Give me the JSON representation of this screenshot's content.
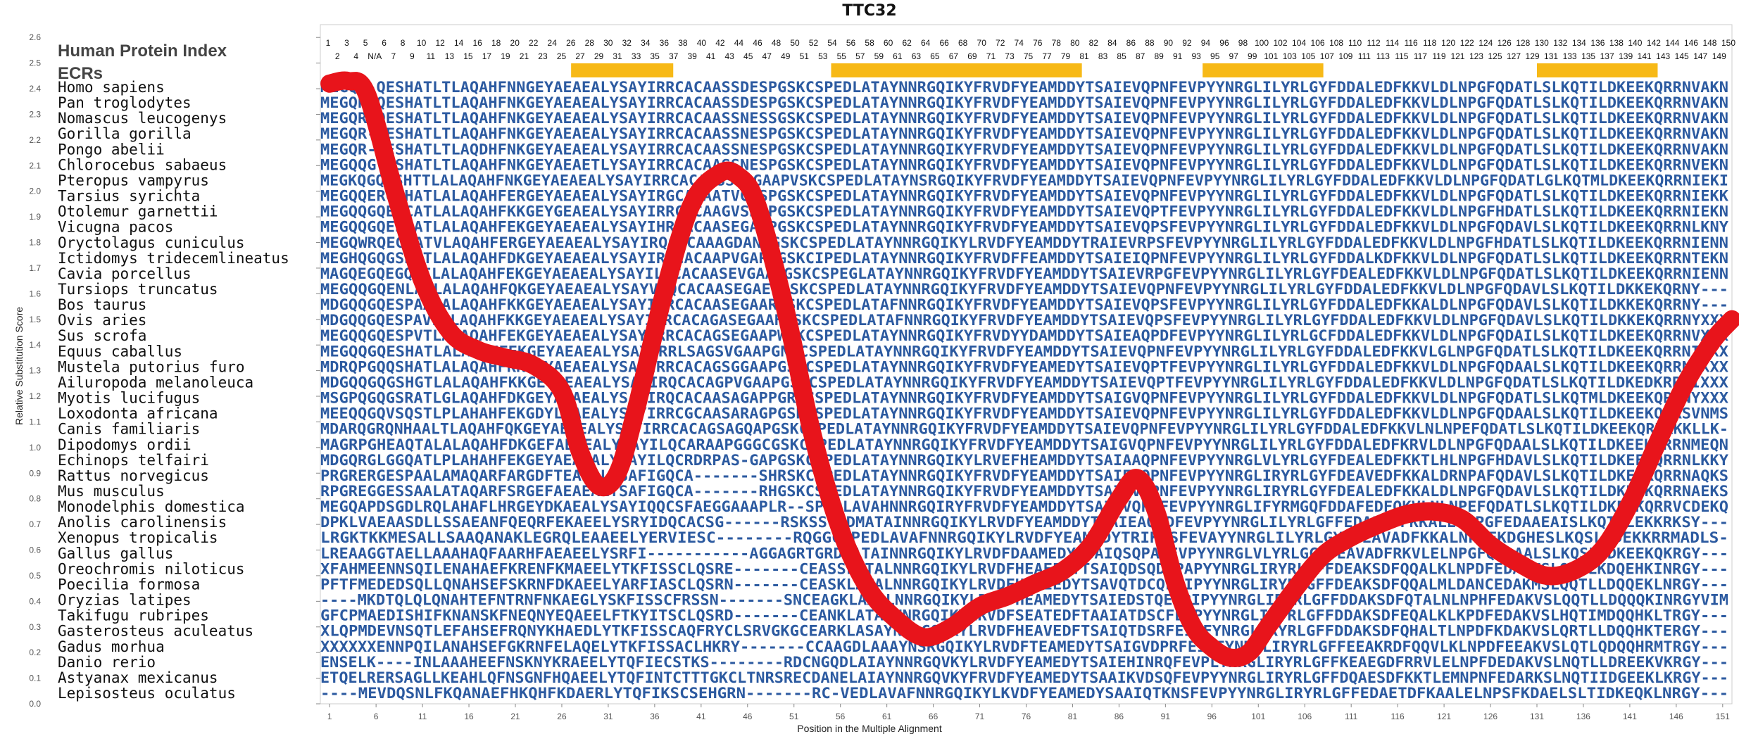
{
  "chart_data": {
    "type": "line",
    "title": "TTC32",
    "xlabel": "Position in the Multiple Alignment",
    "ylabel": "Relative Substitution Score",
    "xlim": [
      0,
      152
    ],
    "ylim": [
      0.0,
      2.65
    ],
    "yticks": [
      "0.0",
      "0.1",
      "0.2",
      "0.3",
      "0.4",
      "0.5",
      "0.6",
      "0.7",
      "0.8",
      "0.9",
      "1.0",
      "1.1",
      "1.2",
      "1.3",
      "1.4",
      "1.5",
      "1.6",
      "1.7",
      "1.8",
      "1.9",
      "2.0",
      "2.1",
      "2.2",
      "2.3",
      "2.4",
      "2.5",
      "2.6"
    ],
    "xticks": [
      "1",
      "6",
      "11",
      "16",
      "21",
      "26",
      "31",
      "36",
      "41",
      "46",
      "51",
      "56",
      "61",
      "66",
      "71",
      "76",
      "81",
      "86",
      "91",
      "96",
      "101",
      "106",
      "111",
      "116",
      "121",
      "126",
      "131",
      "136",
      "141",
      "146",
      "151"
    ],
    "legend_heading": "Human Protein Index",
    "ecr_label": "ECRs",
    "ecr_regions": [
      [
        27,
        38
      ],
      [
        55,
        82
      ],
      [
        95,
        108
      ],
      [
        131,
        144
      ]
    ],
    "index_row1": [
      "1",
      "3",
      "5",
      "6",
      "8",
      "10",
      "12",
      "14",
      "16",
      "18",
      "20",
      "22",
      "24",
      "26",
      "28",
      "30",
      "32",
      "34",
      "36",
      "38",
      "40",
      "42",
      "44",
      "46",
      "48",
      "50",
      "52",
      "54",
      "56",
      "58",
      "60",
      "62",
      "64",
      "66",
      "68",
      "70",
      "72",
      "74",
      "76",
      "78",
      "80",
      "82",
      "84",
      "86",
      "88",
      "90",
      "92",
      "94",
      "96",
      "98",
      "100",
      "102",
      "104",
      "106",
      "108",
      "110",
      "112",
      "114",
      "116",
      "118",
      "120",
      "122",
      "124",
      "126",
      "128",
      "130",
      "132",
      "134",
      "136",
      "138",
      "140",
      "142",
      "144",
      "146",
      "148",
      "150"
    ],
    "index_row2": [
      "2",
      "4",
      "N/A",
      "7",
      "9",
      "11",
      "13",
      "15",
      "17",
      "19",
      "21",
      "23",
      "25",
      "27",
      "29",
      "31",
      "33",
      "35",
      "37",
      "39",
      "41",
      "43",
      "45",
      "47",
      "49",
      "51",
      "53",
      "55",
      "57",
      "59",
      "61",
      "63",
      "65",
      "67",
      "69",
      "71",
      "73",
      "75",
      "77",
      "79",
      "81",
      "83",
      "85",
      "87",
      "89",
      "91",
      "93",
      "95",
      "97",
      "99",
      "101",
      "103",
      "105",
      "107",
      "109",
      "111",
      "113",
      "115",
      "117",
      "119",
      "121",
      "123",
      "125",
      "127",
      "129",
      "131",
      "133",
      "135",
      "137",
      "139",
      "141",
      "143",
      "145",
      "147",
      "149"
    ],
    "series": [
      {
        "color": "#e8141b",
        "x": [
          1,
          3,
          5,
          8,
          11,
          14,
          17,
          20,
          23,
          26,
          28,
          30,
          32,
          34,
          37,
          40,
          43,
          45,
          47,
          50,
          53,
          56,
          59,
          62,
          65,
          68,
          71,
          74,
          77,
          80,
          83,
          86,
          88,
          90,
          92,
          94,
          96,
          98,
          100,
          102,
          105,
          108,
          111,
          114,
          117,
          120,
          123,
          126,
          129,
          132,
          135,
          138,
          141,
          144,
          147,
          150,
          152
        ],
        "y": [
          2.42,
          2.43,
          2.38,
          2.0,
          1.65,
          1.45,
          1.38,
          1.35,
          1.32,
          1.22,
          0.98,
          0.85,
          0.9,
          1.15,
          1.6,
          1.95,
          2.07,
          2.06,
          1.95,
          1.55,
          1.05,
          0.68,
          0.45,
          0.33,
          0.26,
          0.3,
          0.38,
          0.42,
          0.47,
          0.52,
          0.62,
          0.8,
          0.88,
          0.75,
          0.48,
          0.3,
          0.22,
          0.18,
          0.2,
          0.3,
          0.45,
          0.58,
          0.65,
          0.7,
          0.74,
          0.75,
          0.72,
          0.62,
          0.55,
          0.5,
          0.52,
          0.6,
          0.78,
          1.02,
          1.25,
          1.42,
          1.5
        ]
      }
    ],
    "rows": [
      {
        "species": "Homo sapiens",
        "seq": "MEGQR-QESHATLTLAQAHFNNGEYAEAEALYSAYIRRCACAASSDESPGSKCSPEDLATAYNNRGQIKYFRVDFYEAMDDYTSAIEVQPNFEVPYYNRGLILYRLGYFDDALEDFKKVLDLNPGFQDATLSLKQTILDKEEKQRRNVAKN"
      },
      {
        "species": "Pan troglodytes",
        "seq": "MEGQR-QESHATLTLAQAHFNKGEYAEAEALYSAYIRRCACAASSDESPGSKCSPEDLATAYNNRGQIKYFRVDFYEAMDDYTSAIEVQPNFEVPYYNRGLILYRLGYFDDALEDFKKVLDLNPGFQDATLSLKQTILDKEEKQRRNVAKN"
      },
      {
        "species": "Nomascus leucogenys",
        "seq": "MEGQR-QESHATLTLAQAHFNKGEYAEAEALYSAYIRRCACAASSNESSGSKCSPEDLATAYNNRGQIKYFRVDFYEAMDDYTSAIEVQPNFEVPYYNRGLILYRLGYFDDALEDFKKVLDLNPGFQDATLSLKQTILDKEEKQRRNVAKN"
      },
      {
        "species": "Gorilla gorilla",
        "seq": "MEGQR-QESHATLTLAQAHFNKGEYAEAEALYSAYIRRCACAASSNESPGSKCSPEDLATAYNNRGQIKYFRVDFYEAMDDYTSAIEVQPNFEVPYYNRGLILYRLGYFDDALEDFKKVLDLNPGFQDATLSLKQTILDKEEKQRRNVAKN"
      },
      {
        "species": "Pongo abelii",
        "seq": "MEGQR-QESHATLTLAQDHFNKGEYAEAEALYSAYIRRCACAASSNESPGSKCSPEDLATAYNNRGQIKYFRVDFYEAMDDYTSAIEVQPNFEVPYYNRGLILYRLGYFDDALEDFKKVLDLNPGFQDATLSLKQTILDKEEKQRRNVAKN"
      },
      {
        "species": "Chlorocebus sabaeus",
        "seq": "MEGQQG-ESHATLTLAQAHFNKGEYAEAETLYSAYIRRCACAASSNESPGSKCSPEDLATAYNNRGQIKYFRVDFYEAMDDYTSAIEVQPNFEVPYYNRGLILYRLGYFDDALEDFKKVLDLNPGFQDATLSLKQTILDKEEKQRRNVEKN"
      },
      {
        "species": "Pteropus vampyrus",
        "seq": "MEGKQGQESHTTLALAQAHFNKGEYAEAEALYSAYIRRCACAASSPAGAAPVSKCSPEDLATAYNSRGQIKYFRVDFYEAMDDYTSAIEVQPNFEVPYYNRGLILYRLGYFDDALEDFKKVLDLNPGFQDATLGLKQTMLDKEEKQRRNIEKI"
      },
      {
        "species": "Tarsius syrichta",
        "seq": "MEGQQERGSHATLALAQAHFERGEYAEAEALYSAYIRGCAPAATVGASPGSKCSPEDLATAYNNRGQIKYFRVDFYEAMDDYTSAIEVQPNFEVPYYNRGLILYRLGYFDDALEDFKKVLDLNPGFQDATLSLKQTILDKEEKQRRNIEKK"
      },
      {
        "species": "Otolemur garnettii",
        "seq": "MEGQQGQESCATLALAQAHFKKGEYGEAEALYSAYIRRCACAAGVSRAPGSKCSPEDLATAYNNRGQIKYFRVDFYEAMDDYTSAIEVQPTFEVPYYNRGLILYRLGYFDDALEDFKKVLDLNPGFHDATLSLKQTILDKEEKQRRNIEKN"
      },
      {
        "species": "Vicugna pacos",
        "seq": "MEGQQGQESHATLALAQAHFEKGEYAEAEALYSAYIHRCACAASEGAAPGSKCSPEDLATAYNNRGQIKYFRVDFYEAMDDYTSAIEVQPSFEVPYYNRGLILYRLGYFDDALEDFKKVLDLNPGFQDAVLSLKQTILDKEEKQRRNLKNY"
      },
      {
        "species": "Oryctolagus cuniculus",
        "seq": "MEGQWRQEGHATVLAQAHFERGEYAEAEALYSAYIRQCACAAAGDANPGSKCSPEDLATAYNNRGQIKYLRVDFYEAMDDYTRAIEVRPSFEVPYYNRGLILYRLGYFDDALEDFKKVLDLNPGFHDATLSLKQTILDKEEKQRRNIENN"
      },
      {
        "species": "Ictidomys tridecemlineatus",
        "seq": "MEGHQGQGSHDTLALAQAHFDKGEYAEAEALYSAYIRRCACAAPVGARPGSKCIPEDLATAYNNRGQIKYFRVDFFEAMDDYTSAIEIQPNFEVPYYNRGLILYRLGYFDDALKDFKKVLDLNPGFQDATLSLKQTILDKEEKQRRNTEKN"
      },
      {
        "species": "Cavia porcellus",
        "seq": "MAGQEGQEGQAILALAQAHFEKGEYAEAEALYSAYILRCACAASEVGAAPGSKCSPEGLATAYNNRGQIKYFRVDFYEAMDDYTSAIEVRPGFEVPYYNRGLILYRLGYFDEALEDFKKVLDLNPGFQDATLSLKQTILDKEEKQRRNIENN"
      },
      {
        "species": "Tursiops truncatus",
        "seq": "MEGQQGQENLATLALAQAHFQKGEYAEAEALYSAYVRQCACAASEGAESGSKCSPEDLATAYNNRGQIKYFRVDFYEAMDDYTSAIEVQPNFEVPYYNRGLILYRLGYFDDALEDFKKVLDLNPGFQDAVLSLKQTILDKKEKQRNY---"
      },
      {
        "species": "Bos taurus",
        "seq": "MDGQQGQESPAALALAQAHFKKGEYAEAEALYSAYIRRCACAASEGAARGSKCSPEDLATAFNNRGQIKYFRVDFYEAMDDYTSAIEVQPSFEVPYYNRGLILYRLGYFDDALEDFKKALDLNPGFQDAVLSLKQTILDKKEKQRRNY---"
      },
      {
        "species": "Ovis aries",
        "seq": "MDGQQGQESPAVLALAQAHFKKGEYAEAEALYSAYIRRCACAGASEGAAHLSKCSPEDLATAFNNRGQIKYFRVDFYEAMDDYTSAIEVQPSFEVPYYNRGLILYRLGYFDDALEDFKKVLDLNPGFQDAVLSLKQTILDKKEKQRRNYXXX"
      },
      {
        "species": "Sus scrofa",
        "seq": "MEGQQGQESPVTLARAQAHFEKGEYAEAEALYSAYIRRCACAGSEGAAPWSKCSPEDLATAYNNRGQIKYFRVDYYDAMDDYTSAIEAQPDFEVPYYNRGLILYRLGCFDDALEDFKKVLDLNPGFQDAILSLKQTILDKEEKQRRNVXXX"
      },
      {
        "species": "Equus caballus",
        "seq": "MEGQQGQESHATLALAQAHFEKGEYAEAEALYSAYIRRLSAGSVGAAPGNKCSPEDLATAYNNRGQIKYFRVDFYEAMDDYTSAIEVQPNFEVPYYNRGLILYRLGYFDDALEDFKKVLGLNPGFQDATLSLKQTILDKEEKQRRNIXXX"
      },
      {
        "species": "Mustela putorius furo",
        "seq": "MDRQPGQQSHATLALAQAHFKKGEYAEAEALYSAFIRRCACAGSGGAAPGSKCSPEDLATAYNNRGQIKYFRVDFYEAMEDYTSAIEVQPTFEVPYYNRGLILYRLGYFDDALEDFKKVLDLNPGFQDAALSLKQTILDKEEKQRRNIXXX"
      },
      {
        "species": "Ailuropoda melanoleuca",
        "seq": "MDGQQGQGSHGTLALAQAHFKKGEYAEAEALYSAYIRQCACAGPVGAAPGSKCSPEDLATAYNNRGQIKYFRVDFYEAMDDYTSAIEVQPTFEVPYYNRGLILYRLGYFDDALEDFKKVLDLNPGFQDATLSLKQTILDKEDKRRNIXXX"
      },
      {
        "species": "Myotis lucifugus",
        "seq": "MSGPQGQGSRATLGLAQAHFDKGEYAEAEALYSAYIRQCACAASAGAPPGRECSPEDLATAYNNRGQIKYFRVDFYEAMDDYTSAIGVQPNFEVPYYNRGLILYRLGYFDDALEDFKKVLDLNPGFQDATLSLKQTMLDKEEKQRRNYXXX"
      },
      {
        "species": "Loxodonta africana",
        "seq": "MEEQQGQVSQSTLPLAHAHFEKGDYLEAEALYSAYIRRCGCAASARAGPGSKCSPEDLATAYNNRGQIKYFRVDFYEAMDDYTSAIEVQPNFEVPYYNRGLILYRLGYFDDALEDFKKVLDLNPGFQDAALSLKQTILDKEEKQRRSVNMS"
      },
      {
        "species": "Canis familiaris",
        "seq": "MDARQGRQNHAALTLAQAHFQKGEYAEAEALYSAYIRRCACAGSAGQAPGSKCSPEDLATAYNNRGQIKYFRVDFYEAMDDYTSAIEVQPNFEVPYYNRGLILYRLGYFDDALEDFKKVLNLNPEFQDATLSLKQTILDKEEKQRRKKKLLK-"
      },
      {
        "species": "Dipodomys ordii",
        "seq": "MAGRPGHEAQTALALAQAHFDKGEFAEAEALYSAYILQCARAAPGGGCGSKCSPEDLATAYNNRGQIKYFRVDFYEAMDDYTSAIGVQPNFEVPYYNRGLILYRLGYFDDALEDFKRVLDLNPGFQDAALSLKQTILDKEEKQRRNMEQN"
      },
      {
        "species": "Echinops telfairi",
        "seq": "MDGQRGLGGQATLPLAHAHFEKGEYAEAEALYSAYILQCRDRPAS-GAPGSKCCPEDLATAYNNRGQIKYLRVEFHEAMDDYTSAIAAQPNFEVPYYNRGLVLYRLGYFDEALEDFKKTLHLNPGFHDAVLSLKQTILDKEEKQRRNLKKY"
      },
      {
        "species": "Rattus norvegicus",
        "seq": "PRGRERGESPAALAMAQARFARGDFTEAEALYSAFIGQCA-------SHRSKCSPEDLATAYNNRGQIKYFRVDFYEAMDDYTSAIEVQPNFEVPYYNRGLIRYRLGYFDEAVEDFKKALDRNPAFQDAVLSLKQTILDKEEKQRRNAQKS"
      },
      {
        "species": "Mus musculus",
        "seq": "RPGREGGESSAALATAQARFSRGEFAEAEALYSAFIGQCA-------RHGSKCSPEDLATAYNNRGQIKYFRVDFYEAMDDYTSAIEVQPNFEVPYYNRGLIRYRLGYFDEALEDFKKALDLNPGFQDAVLSLKQTILDKEEKQRRNAEKS"
      },
      {
        "species": "Monodelphis domestica",
        "seq": "MEGQAPDSGDLRQLAHAFLHRGEYDKAEALYSAYIQQCSFAEGGAAAPLR--SPEDLAVAHNNRGQIRYFRVDFYEAMDDYTSAIEVQPNFEVPYYNRGLIFYRMGQFDDAFEDFQKVLNLNPEFQDATLSLKQTILDKEEKQRRVCDEKQ"
      },
      {
        "species": "Anolis carolinensis",
        "seq": "DPKLVAEAASDLLSSAEANFQEQRFEKAEELYSRYIDQCACSG------RSKSSCHDMATAINNRGQIKYLRVDFYEAMDDYTAAIEAQPDFEVPYYNRGLILYRLGFFEDALGDFKKALELNPGFEDAAEAISLKQTLLEKKRKSY---"
      },
      {
        "species": "Xenopus tropicalis",
        "seq": "LRGKTKKMESALLSAAQANAKLEGRQLEAAEELYERVIESC--------RQGGCSPEDLAVAFNNRGQIKYLRVDFYEAMDDYTRIKPSFEVAYYNRGLILYRLGYFDEAVADFKKALNPEFKDGHESLKQSLLDEKKRRMADLS-"
      },
      {
        "species": "Gallus gallus",
        "seq": "LREAAGGTAELLAAAHAQFAARHFAEAEELYSRFI-----------AGGAGRTGRDLATAINNRGQIKYLRVDFDAAMEDYTSAIQSQPAFEVPYYNRGLVLYRLGCFDEAVADFRKVLELNPGFQEDAALSLKQSILDKEEKQKRGY---"
      },
      {
        "species": "Oreochromis niloticus",
        "seq": "XFAHMEENNSQILENAHAEFKRENFKMAEELYTKFISSCLQSRE-------CEASSLATALNNRGQIKYLRVDFHEAEEDYTSAIQDSQDFPAPYYNRGLIRYRLGFFDEAKSDFQQALKLNPDFEDAKVSLQQTLKDQEHKINRGY---"
      },
      {
        "species": "Poecilia formosa",
        "seq": "PFTFMEDEDSQLLQNAHSEFSKRNFDKAEELYARFIASCLQSRN-------CEASKLATALNNRGQIKYLRVDFHEAEEDYTSAVQTDCQFPIPYYNRGLIRYRLGFFDEAKSDFQQALMLDANCEDAKMSLQQTLLDQQEKLNRGY---"
      },
      {
        "species": "Oryzias latipes",
        "seq": "----MKDTQLQLQNAHTEFNTRNFNKAEGLYSKFISSCFRSSN-------SNCEAGKLAAALNNRGQIKYLRVDFHEAMEDYTSAIEDSTQEFPIPYYNRGLIRYRLGFFDDAKSDFQTALNLNPHFEDAKVSLQQTLLDQQQKINRGYVIM"
      },
      {
        "species": "Takifugu rubripes",
        "seq": "GFCPMAEDISHIFKNANSKFNEQNYEQAEELFTKYITSCLQSRD-------CEANKLATALNNRGQIKYLRVDFSEATEDFTAAIATDSCFEIPYYNRGLIRYRLGFFDDAKSDFEQALKLKPDFEDAKVSLHQTIMDQQHKLTRGY---"
      },
      {
        "species": "Gasterosteus aculeatus",
        "seq": "XLQPMDEVNSQTLEFAHSEFRQNYKHAEDLYTKFISSCAQFRYCLSRVGKGCEARKLASAYNNRGQIKYLRVDFHEAVEDFTSAIQTDSRFEIPFYNRGLIRYRLGFFDDAKSDFQHALTLNPDFKDAKVSLQRTLLDQQHKTERGY---"
      },
      {
        "species": "Gadus morhua",
        "seq": "XXXXXXENNPQILANAHSEFGKRNFELAQELYTKFISSACLHKRY-------CCAAGDLAAAYNSRGQIKYLRVDFTEAMEDYTSAIGVDPRFEIPFYNRGLIRYRLGFFEEAKRDFQQVLKLNPDFEEAKVSLQTLQDQQHRMTRGY---"
      },
      {
        "species": "Danio rerio",
        "seq": "ENSELK----INLAAAHEEFNSKNYKRAEELYTQFIECSTKS--------RDCNGQDLAIAYNNRGQVKYLRVDFYEAMEDYTSAIEHINRQFEVPLYNRGLIRYRLGFFKEAEGDFRRVLELNPFDEDAKVSLNQTLLDREEKVKRGY---"
      },
      {
        "species": "Astyanax mexicanus",
        "seq": "ETQELRERSAGLLKEAHLQFNSGNFHQAEELYTQFINTCTTTGKCLTNRSRECDANELAIAYNNRGQVKYFRVDFYEAMEDYTSAAIKVDSQFEVPYYNRGLIRYRLGFFDQAESDFKKTLEMNPNFEDARKSLNQTIIDGEEKLKRGY---"
      },
      {
        "species": "Lepisosteus oculatus",
        "seq": "----MEVDQSNLFKQANAEFHKQHFKDAERLYTQFIKSCSEHGRN-------RC-VEDLAVAFNNRGQIKYLKVDFYEAMEDYSAAIQTKNSFEVPYYNRGLIRYRLGFFEDAETDFKAALELNPSFKDAELSLTIDKEQKLNRGY---"
      }
    ]
  }
}
